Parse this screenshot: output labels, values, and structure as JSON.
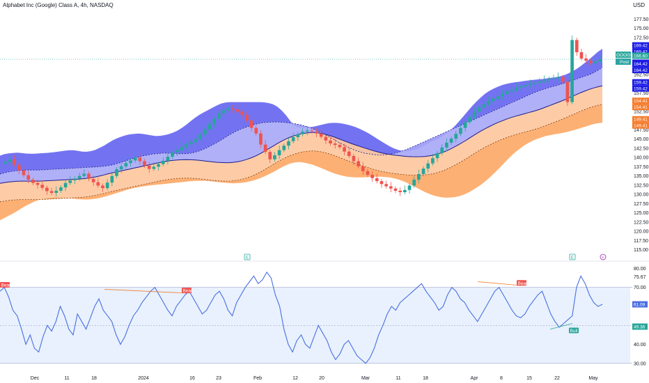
{
  "header": {
    "title": "Alphabet Inc (Google) Class A, 4h, NASDAQ",
    "currency": "USD"
  },
  "colors": {
    "up": "#26a69a",
    "down": "#ef5350",
    "band_top": "#5b5bf0",
    "band_mid": "#a7a7f7",
    "band_low": "#fdc79c",
    "band_bottom": "#fda25b",
    "rsi_line": "#4a6ee0",
    "rsi_fill": "#e8f1fd"
  },
  "chart_data": [
    {
      "type": "candlestick",
      "title": "",
      "ylim": [
        112.5,
        180
      ],
      "y_ticks": [
        "177.50",
        "175.00",
        "172.50",
        "167.50",
        "162.50",
        "157.50",
        "152.50",
        "150.00",
        "147.50",
        "145.00",
        "142.50",
        "140.00",
        "137.50",
        "135.00",
        "132.50",
        "130.00",
        "127.50",
        "125.00",
        "122.50",
        "120.00",
        "117.50",
        "115.00"
      ],
      "x_ticks": [
        "Dec",
        "11",
        "18",
        "2024",
        "16",
        "23",
        "Feb",
        "12",
        "20",
        "Mar",
        "11",
        "18",
        "Apr",
        "8",
        "15",
        "22",
        "May"
      ],
      "price_tags": [
        {
          "label": "169.42",
          "color": "#1c1ce6"
        },
        {
          "label": "169.42",
          "color": "#1c1ce6"
        },
        {
          "label": "166.60",
          "color": "#26a69a"
        },
        {
          "label": "166.42",
          "color": "#1c1ce6"
        },
        {
          "label": "164.42",
          "color": "#1c1ce6"
        },
        {
          "label": "164.42",
          "color": "#1c1ce6"
        },
        {
          "label": "159.42",
          "color": "#1c1ce6"
        },
        {
          "label": "159.42",
          "color": "#1c1ce6"
        },
        {
          "label": "154.41",
          "color": "#f57c2c"
        },
        {
          "label": "154.41",
          "color": "#f57c2c"
        },
        {
          "label": "149.41",
          "color": "#f57c2c"
        },
        {
          "label": "149.41",
          "color": "#f57c2c"
        }
      ],
      "symbol_tag": {
        "label": "GOOGL",
        "value": "166.60"
      },
      "post_tag": "Post",
      "events": [
        "E",
        "E",
        "⚡"
      ],
      "closes": [
        138.8,
        139.5,
        138.0,
        136.5,
        135.2,
        134.0,
        133.1,
        132.6,
        131.8,
        130.9,
        130.4,
        131.0,
        131.9,
        133.1,
        133.8,
        134.3,
        135.0,
        135.6,
        134.2,
        133.3,
        132.4,
        131.7,
        133.2,
        135.0,
        136.8,
        137.6,
        138.5,
        139.2,
        140.0,
        139.0,
        137.8,
        136.9,
        137.5,
        138.2,
        139.1,
        140.2,
        141.4,
        142.0,
        142.8,
        143.6,
        144.2,
        145.0,
        146.2,
        147.6,
        149.0,
        150.5,
        152.0,
        152.8,
        153.3,
        153.0,
        152.4,
        151.5,
        150.0,
        148.0,
        146.5,
        143.5,
        141.5,
        139.5,
        140.6,
        142.0,
        143.2,
        144.4,
        145.5,
        146.3,
        147.0,
        147.3,
        147.1,
        146.5,
        145.6,
        144.6,
        143.8,
        143.4,
        142.8,
        141.6,
        140.4,
        139.0,
        137.6,
        136.3,
        135.3,
        134.4,
        133.6,
        132.8,
        132.2,
        131.6,
        131.0,
        130.6,
        131.2,
        132.4,
        134.0,
        135.5,
        137.0,
        138.4,
        139.8,
        141.2,
        142.7,
        144.0,
        145.1,
        146.4,
        148.0,
        149.6,
        151.0,
        152.4,
        153.6,
        154.4,
        155.2,
        155.9,
        156.5,
        157.2,
        157.9,
        158.3,
        158.9,
        159.3,
        159.6,
        159.9,
        160.2,
        160.6,
        161.0,
        161.3,
        161.5,
        161.8,
        160.5,
        155.0,
        171.8,
        168.5,
        166.8,
        166.2,
        165.5,
        166.0,
        166.6
      ],
      "upper_outer_top": [
        140.5,
        141.0,
        141.2,
        141.3,
        141.2,
        141.0,
        141.0,
        141.1,
        141.2,
        141.3,
        141.5,
        141.7,
        141.9,
        142.0,
        141.8,
        141.5,
        141.6,
        142.0,
        142.7,
        143.5,
        144.5,
        145.2,
        145.8,
        146.2,
        146.4,
        146.5,
        146.3,
        146.0,
        145.8,
        145.9,
        146.2,
        146.7,
        147.4,
        148.4,
        149.6,
        150.8,
        151.8,
        152.6,
        153.4,
        154.2,
        154.8,
        155.0,
        155.0,
        155.0,
        155.0,
        155.0,
        155.0,
        155.0,
        154.8,
        154.4,
        153.5,
        152.0,
        150.0,
        148.2,
        148.0,
        148.1,
        148.3,
        148.6,
        149.0,
        149.3,
        149.4,
        149.3,
        149.0,
        148.6,
        148.1,
        147.4,
        146.6,
        145.7,
        144.7,
        143.8,
        142.9,
        142.2,
        141.8,
        141.7,
        141.9,
        142.4,
        143.2,
        144.0,
        144.7,
        145.4,
        146.4,
        147.7,
        149.2,
        151.0,
        152.8,
        154.5,
        156.0,
        157.3,
        158.3,
        159.0,
        159.6,
        160.0,
        160.3,
        160.5,
        160.7,
        160.9,
        161.1,
        161.2,
        161.4,
        161.6,
        161.8,
        162.2,
        162.8,
        163.6,
        164.6,
        165.8,
        167.0,
        168.4,
        169.42
      ],
      "upper_inner": [
        135.5,
        136.0,
        136.3,
        136.5,
        136.6,
        136.6,
        136.6,
        136.7,
        136.8,
        136.9,
        137.0,
        137.1,
        137.2,
        137.3,
        137.4,
        137.5,
        137.7,
        138.0,
        138.5,
        139.1,
        139.7,
        140.2,
        140.6,
        140.9,
        141.1,
        141.2,
        141.1,
        141.0,
        141.0,
        141.2,
        141.7,
        142.4,
        143.3,
        144.3,
        145.4,
        146.5,
        147.4,
        148.1,
        148.7,
        149.2,
        149.5,
        149.6,
        149.6,
        149.5,
        149.3,
        149.0,
        148.6,
        148.0,
        147.2,
        146.3,
        145.3,
        144.3,
        143.3,
        142.4,
        141.7,
        141.2,
        140.9,
        140.7,
        140.7,
        140.9,
        141.3,
        141.9,
        142.6,
        143.4,
        144.2,
        145.0,
        145.8,
        146.6,
        147.4,
        148.2,
        149.0,
        149.8,
        150.6,
        151.4,
        152.2,
        153.0,
        153.8,
        154.6,
        155.4,
        156.2,
        157.0,
        157.8,
        158.4,
        159.0,
        159.42,
        160.0,
        160.6,
        161.2,
        161.8,
        162.4,
        163.2,
        164.42
      ],
      "middle": [
        133.0,
        133.3,
        133.5,
        133.6,
        133.6,
        133.6,
        133.6,
        133.7,
        133.8,
        133.9,
        134.0,
        134.1,
        134.2,
        134.4,
        134.7,
        135.1,
        135.6,
        136.0,
        136.4,
        136.8,
        137.2,
        137.6,
        138.0,
        138.4,
        138.8,
        139.1,
        139.3,
        139.4,
        139.4,
        139.3,
        139.1,
        138.9,
        138.7,
        138.6,
        138.6,
        138.8,
        139.2,
        139.8,
        140.6,
        141.6,
        142.7,
        143.8,
        144.8,
        145.6,
        146.2,
        146.6,
        146.8,
        146.7,
        146.3,
        145.8,
        145.1,
        144.4,
        143.7,
        143.1,
        142.5,
        141.9,
        141.4,
        141.0,
        140.7,
        140.5,
        140.3,
        140.2,
        140.2,
        140.3,
        140.6,
        141.1,
        141.8,
        142.7,
        143.7,
        144.8,
        146.0,
        147.1,
        148.1,
        149.0,
        149.8,
        150.5,
        151.1,
        151.6,
        152.1,
        152.6,
        153.2,
        153.9,
        154.6,
        155.3,
        156.1,
        156.9,
        157.7,
        158.4,
        159.0,
        159.42
      ],
      "lower_inner": [
        128.0,
        128.3,
        128.5,
        128.6,
        128.6,
        128.6,
        128.6,
        128.7,
        128.8,
        128.9,
        129.0,
        129.1,
        129.2,
        129.4,
        129.7,
        130.1,
        130.6,
        131.0,
        131.4,
        131.8,
        132.2,
        132.6,
        133.0,
        133.4,
        133.8,
        134.1,
        134.3,
        134.4,
        134.4,
        134.3,
        134.1,
        133.9,
        133.7,
        133.6,
        133.6,
        133.8,
        134.2,
        134.8,
        135.6,
        136.6,
        137.7,
        138.8,
        139.8,
        140.6,
        141.2,
        141.6,
        141.8,
        141.7,
        141.3,
        140.8,
        140.1,
        139.4,
        138.7,
        138.1,
        137.5,
        136.9,
        136.4,
        136.0,
        135.7,
        135.5,
        135.3,
        135.2,
        135.2,
        135.3,
        135.6,
        136.1,
        136.8,
        137.7,
        138.7,
        139.8,
        141.0,
        142.1,
        143.1,
        144.0,
        144.8,
        145.5,
        146.1,
        146.6,
        147.1,
        147.6,
        148.2,
        148.9,
        149.6,
        150.3,
        151.1,
        151.9,
        152.7,
        153.4,
        154.0,
        154.41
      ],
      "lower_outer": [
        123.0,
        124.0,
        125.0,
        126.2,
        127.3,
        128.2,
        128.8,
        129.1,
        129.2,
        129.1,
        128.9,
        128.7,
        128.6,
        128.7,
        129.0,
        129.5,
        130.1,
        130.7,
        131.3,
        131.8,
        132.1,
        132.4,
        132.6,
        132.8,
        133.0,
        133.2,
        133.4,
        133.6,
        133.7,
        133.7,
        133.5,
        133.3,
        133.1,
        133.0,
        133.1,
        133.4,
        133.9,
        134.6,
        135.5,
        136.5,
        137.6,
        138.4,
        138.8,
        138.6,
        138.1,
        137.4,
        136.6,
        135.8,
        135.2,
        134.8,
        134.6,
        134.6,
        134.7,
        134.8,
        134.8,
        134.6,
        134.2,
        133.5,
        132.6,
        131.6,
        130.6,
        129.8,
        129.3,
        129.1,
        129.2,
        129.6,
        130.4,
        131.5,
        132.8,
        134.4,
        136.2,
        138.2,
        140.2,
        141.9,
        143.3,
        144.4,
        145.2,
        145.8,
        146.2,
        146.5,
        146.9,
        147.4,
        148.0,
        148.6,
        149.2,
        149.41
      ],
      "rsi": {
        "title": "",
        "ylim": [
          27,
          82
        ],
        "y_ticks": [
          "80.00",
          "75.67",
          "70.00",
          "61.09",
          "49.36",
          "40.00",
          "30.00"
        ],
        "upper": 70,
        "lower": 30,
        "current": "61.09",
        "mid_value": "49.36",
        "labels": [
          "Bear",
          "Bear",
          "Bear",
          "Bull"
        ],
        "values": [
          68,
          70,
          65,
          58,
          55,
          48,
          40,
          45,
          38,
          36,
          44,
          50,
          47,
          52,
          60,
          55,
          48,
          45,
          56,
          52,
          48,
          54,
          60,
          64,
          58,
          55,
          52,
          45,
          40,
          44,
          50,
          55,
          58,
          62,
          65,
          68,
          70,
          66,
          62,
          58,
          55,
          60,
          63,
          66,
          68,
          64,
          60,
          56,
          58,
          62,
          66,
          68,
          64,
          58,
          55,
          62,
          66,
          70,
          73,
          76,
          72,
          74,
          78,
          75,
          66,
          60,
          48,
          40,
          36,
          42,
          45,
          40,
          38,
          44,
          50,
          46,
          42,
          36,
          32,
          35,
          40,
          42,
          38,
          34,
          32,
          30,
          33,
          38,
          45,
          50,
          56,
          60,
          58,
          62,
          64,
          66,
          68,
          70,
          72,
          68,
          65,
          62,
          58,
          60,
          66,
          70,
          68,
          64,
          62,
          58,
          55,
          52,
          56,
          60,
          64,
          68,
          70,
          66,
          62,
          58,
          55,
          54,
          56,
          60,
          63,
          66,
          68,
          62,
          56,
          52,
          49,
          51,
          53,
          55,
          70,
          76,
          72,
          66,
          62,
          60,
          61.09
        ]
      }
    }
  ]
}
